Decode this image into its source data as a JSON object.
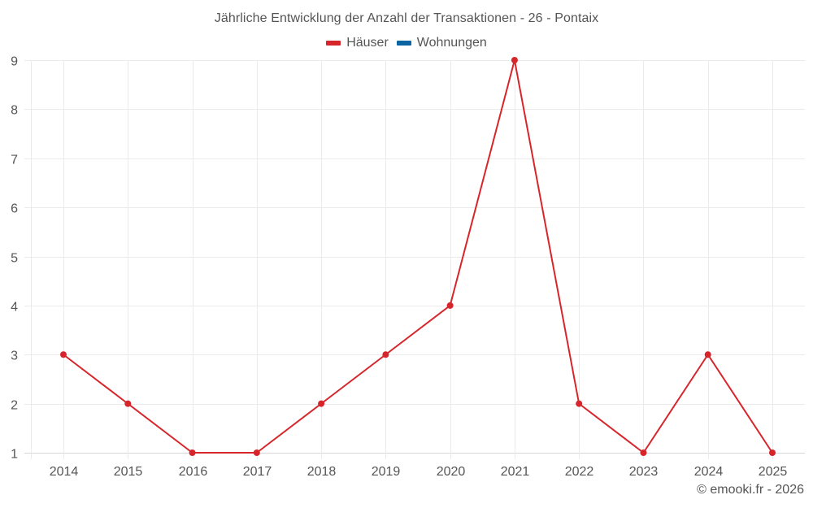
{
  "chart_data": {
    "type": "line",
    "title": "Jährliche Entwicklung der Anzahl der Transaktionen - 26 - Pontaix",
    "xlabel": "",
    "ylabel": "",
    "categories": [
      "2014",
      "2015",
      "2016",
      "2017",
      "2018",
      "2019",
      "2020",
      "2021",
      "2022",
      "2023",
      "2024",
      "2025"
    ],
    "series": [
      {
        "name": "Häuser",
        "color": "#d7262b",
        "values": [
          3,
          2,
          1,
          1,
          2,
          3,
          4,
          9,
          2,
          1,
          3,
          1
        ]
      },
      {
        "name": "Wohnungen",
        "color": "#0b65a3",
        "values": []
      }
    ],
    "yticks": [
      "1",
      "2",
      "3",
      "4",
      "5",
      "6",
      "7",
      "8",
      "9"
    ],
    "ylim": [
      1,
      9
    ],
    "grid": true,
    "legend_position": "top"
  },
  "legend": {
    "items": [
      {
        "label": "Häuser",
        "color": "#d7262b"
      },
      {
        "label": "Wohnungen",
        "color": "#0b65a3"
      }
    ]
  },
  "credit": "© emooki.fr - 2026"
}
